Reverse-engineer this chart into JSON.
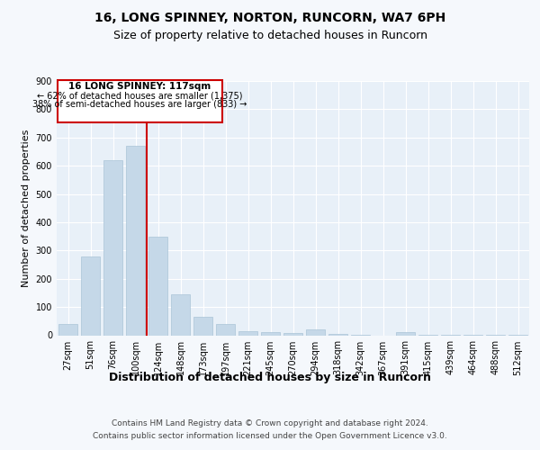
{
  "title1": "16, LONG SPINNEY, NORTON, RUNCORN, WA7 6PH",
  "title2": "Size of property relative to detached houses in Runcorn",
  "xlabel": "Distribution of detached houses by size in Runcorn",
  "ylabel": "Number of detached properties",
  "footnote1": "Contains HM Land Registry data © Crown copyright and database right 2024.",
  "footnote2": "Contains public sector information licensed under the Open Government Licence v3.0.",
  "annotation_line1": "16 LONG SPINNEY: 117sqm",
  "annotation_line2": "← 62% of detached houses are smaller (1,375)",
  "annotation_line3": "38% of semi-detached houses are larger (833) →",
  "bar_categories": [
    "27sqm",
    "51sqm",
    "76sqm",
    "100sqm",
    "124sqm",
    "148sqm",
    "173sqm",
    "197sqm",
    "221sqm",
    "245sqm",
    "270sqm",
    "294sqm",
    "318sqm",
    "342sqm",
    "367sqm",
    "391sqm",
    "415sqm",
    "439sqm",
    "464sqm",
    "488sqm",
    "512sqm"
  ],
  "bar_values": [
    40,
    280,
    620,
    670,
    348,
    145,
    65,
    40,
    15,
    10,
    8,
    20,
    5,
    3,
    0,
    10,
    3,
    2,
    1,
    1,
    1
  ],
  "bar_color": "#c5d8e8",
  "bar_edge_color": "#aac4d8",
  "vline_color": "#cc0000",
  "vline_x": 3.5,
  "annotation_box_color": "#cc0000",
  "ylim": [
    0,
    900
  ],
  "yticks": [
    0,
    100,
    200,
    300,
    400,
    500,
    600,
    700,
    800,
    900
  ],
  "background_color": "#e8f0f8",
  "grid_color": "#ffffff",
  "fig_background": "#f5f8fc",
  "title1_fontsize": 10,
  "title2_fontsize": 9,
  "xlabel_fontsize": 9,
  "ylabel_fontsize": 8,
  "tick_fontsize": 7,
  "footnote_fontsize": 6.5,
  "annotation_fontsize_bold": 7.5,
  "annotation_fontsize": 7
}
